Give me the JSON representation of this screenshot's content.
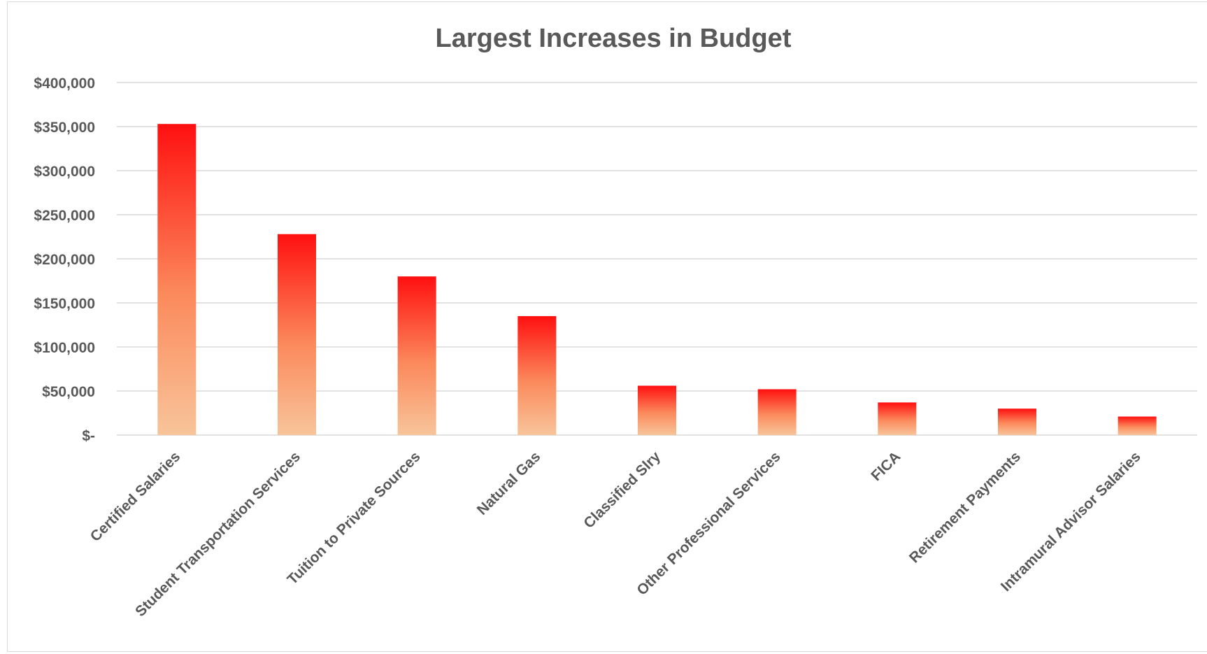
{
  "chart_data": {
    "type": "bar",
    "title": "Largest Increases in Budget",
    "xlabel": "",
    "ylabel": "",
    "categories": [
      "Certified Salaries",
      "Student Transportation Services",
      "Tuition to Private Sources",
      "Natural Gas",
      "Classified Slry",
      "Other Professional Services",
      "FICA",
      "Retirement Payments",
      "Intramural Advisor Salaries"
    ],
    "values": [
      353000,
      228000,
      180000,
      135000,
      56000,
      52000,
      37000,
      30000,
      21000
    ],
    "ylim": [
      0,
      400000
    ],
    "yticks": [
      {
        "value": 0,
        "label": "$-"
      },
      {
        "value": 50000,
        "label": "$50,000"
      },
      {
        "value": 100000,
        "label": "$100,000"
      },
      {
        "value": 150000,
        "label": "$150,000"
      },
      {
        "value": 200000,
        "label": "$200,000"
      },
      {
        "value": 250000,
        "label": "$250,000"
      },
      {
        "value": 300000,
        "label": "$300,000"
      },
      {
        "value": 350000,
        "label": "$350,000"
      },
      {
        "value": 400000,
        "label": "$400,000"
      }
    ],
    "grid": true,
    "legend": "none",
    "colors": {
      "bar_top": "#ff1010",
      "bar_bottom": "#f8c49a",
      "grid": "#d9d9d9",
      "text": "#595959"
    }
  }
}
